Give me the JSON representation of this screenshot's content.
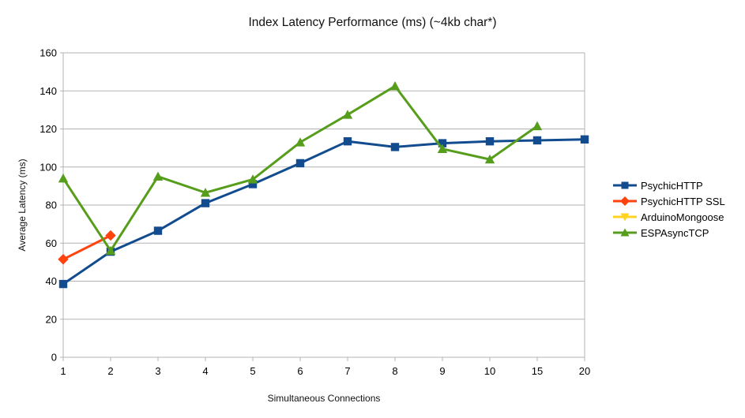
{
  "title": "Index Latency Performance (ms) (~4kb char*)",
  "colors": {
    "background": "#ffffff",
    "grid": "#b3b3b3",
    "axis": "#b3b3b3",
    "text": "#000000",
    "series_blue": "#124c8f",
    "series_red": "#ff420e",
    "series_yellow": "#ffd320",
    "series_green": "#579d1c"
  },
  "chart_data": {
    "type": "line",
    "title": "Index Latency Performance (ms) (~4kb char*)",
    "xlabel": "Simultaneous Connections",
    "ylabel": "Average Latency (ms)",
    "categories": [
      "1",
      "2",
      "3",
      "4",
      "5",
      "6",
      "7",
      "8",
      "9",
      "10",
      "15",
      "20"
    ],
    "ylim": [
      0,
      160
    ],
    "y_ticks": [
      0,
      20,
      40,
      60,
      80,
      100,
      120,
      140,
      160
    ],
    "grid": "horizontal",
    "legend_position": "right",
    "series": [
      {
        "name": "PsychicHTTP",
        "color": "#124c8f",
        "marker": "square",
        "values": [
          38.5,
          55.5,
          66.5,
          81,
          91,
          102,
          113.5,
          110.5,
          112.5,
          113.5,
          114,
          114.5
        ]
      },
      {
        "name": "PsychicHTTP SSL",
        "color": "#ff420e",
        "marker": "diamond",
        "values": [
          51.5,
          64,
          null,
          null,
          null,
          null,
          null,
          null,
          null,
          null,
          null,
          null
        ]
      },
      {
        "name": "ArduinoMongoose",
        "color": "#ffd320",
        "marker": "triangle-down",
        "values": [
          null,
          null,
          null,
          null,
          null,
          null,
          null,
          null,
          null,
          null,
          null,
          null
        ]
      },
      {
        "name": "ESPAsyncTCP",
        "color": "#579d1c",
        "marker": "triangle-up",
        "values": [
          94,
          56,
          95,
          86.5,
          93.5,
          113,
          127.5,
          142.5,
          109.5,
          104,
          121.5,
          null
        ]
      }
    ]
  }
}
